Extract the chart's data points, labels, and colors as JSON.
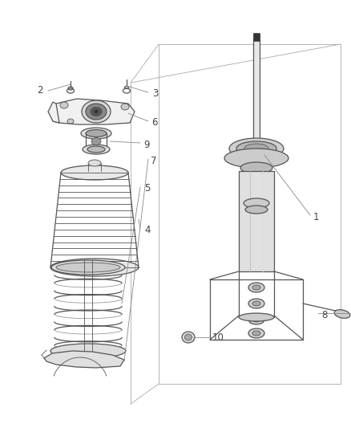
{
  "background_color": "#ffffff",
  "line_color": "#555555",
  "label_color": "#444444",
  "fig_width": 4.38,
  "fig_height": 5.33,
  "dpi": 100
}
